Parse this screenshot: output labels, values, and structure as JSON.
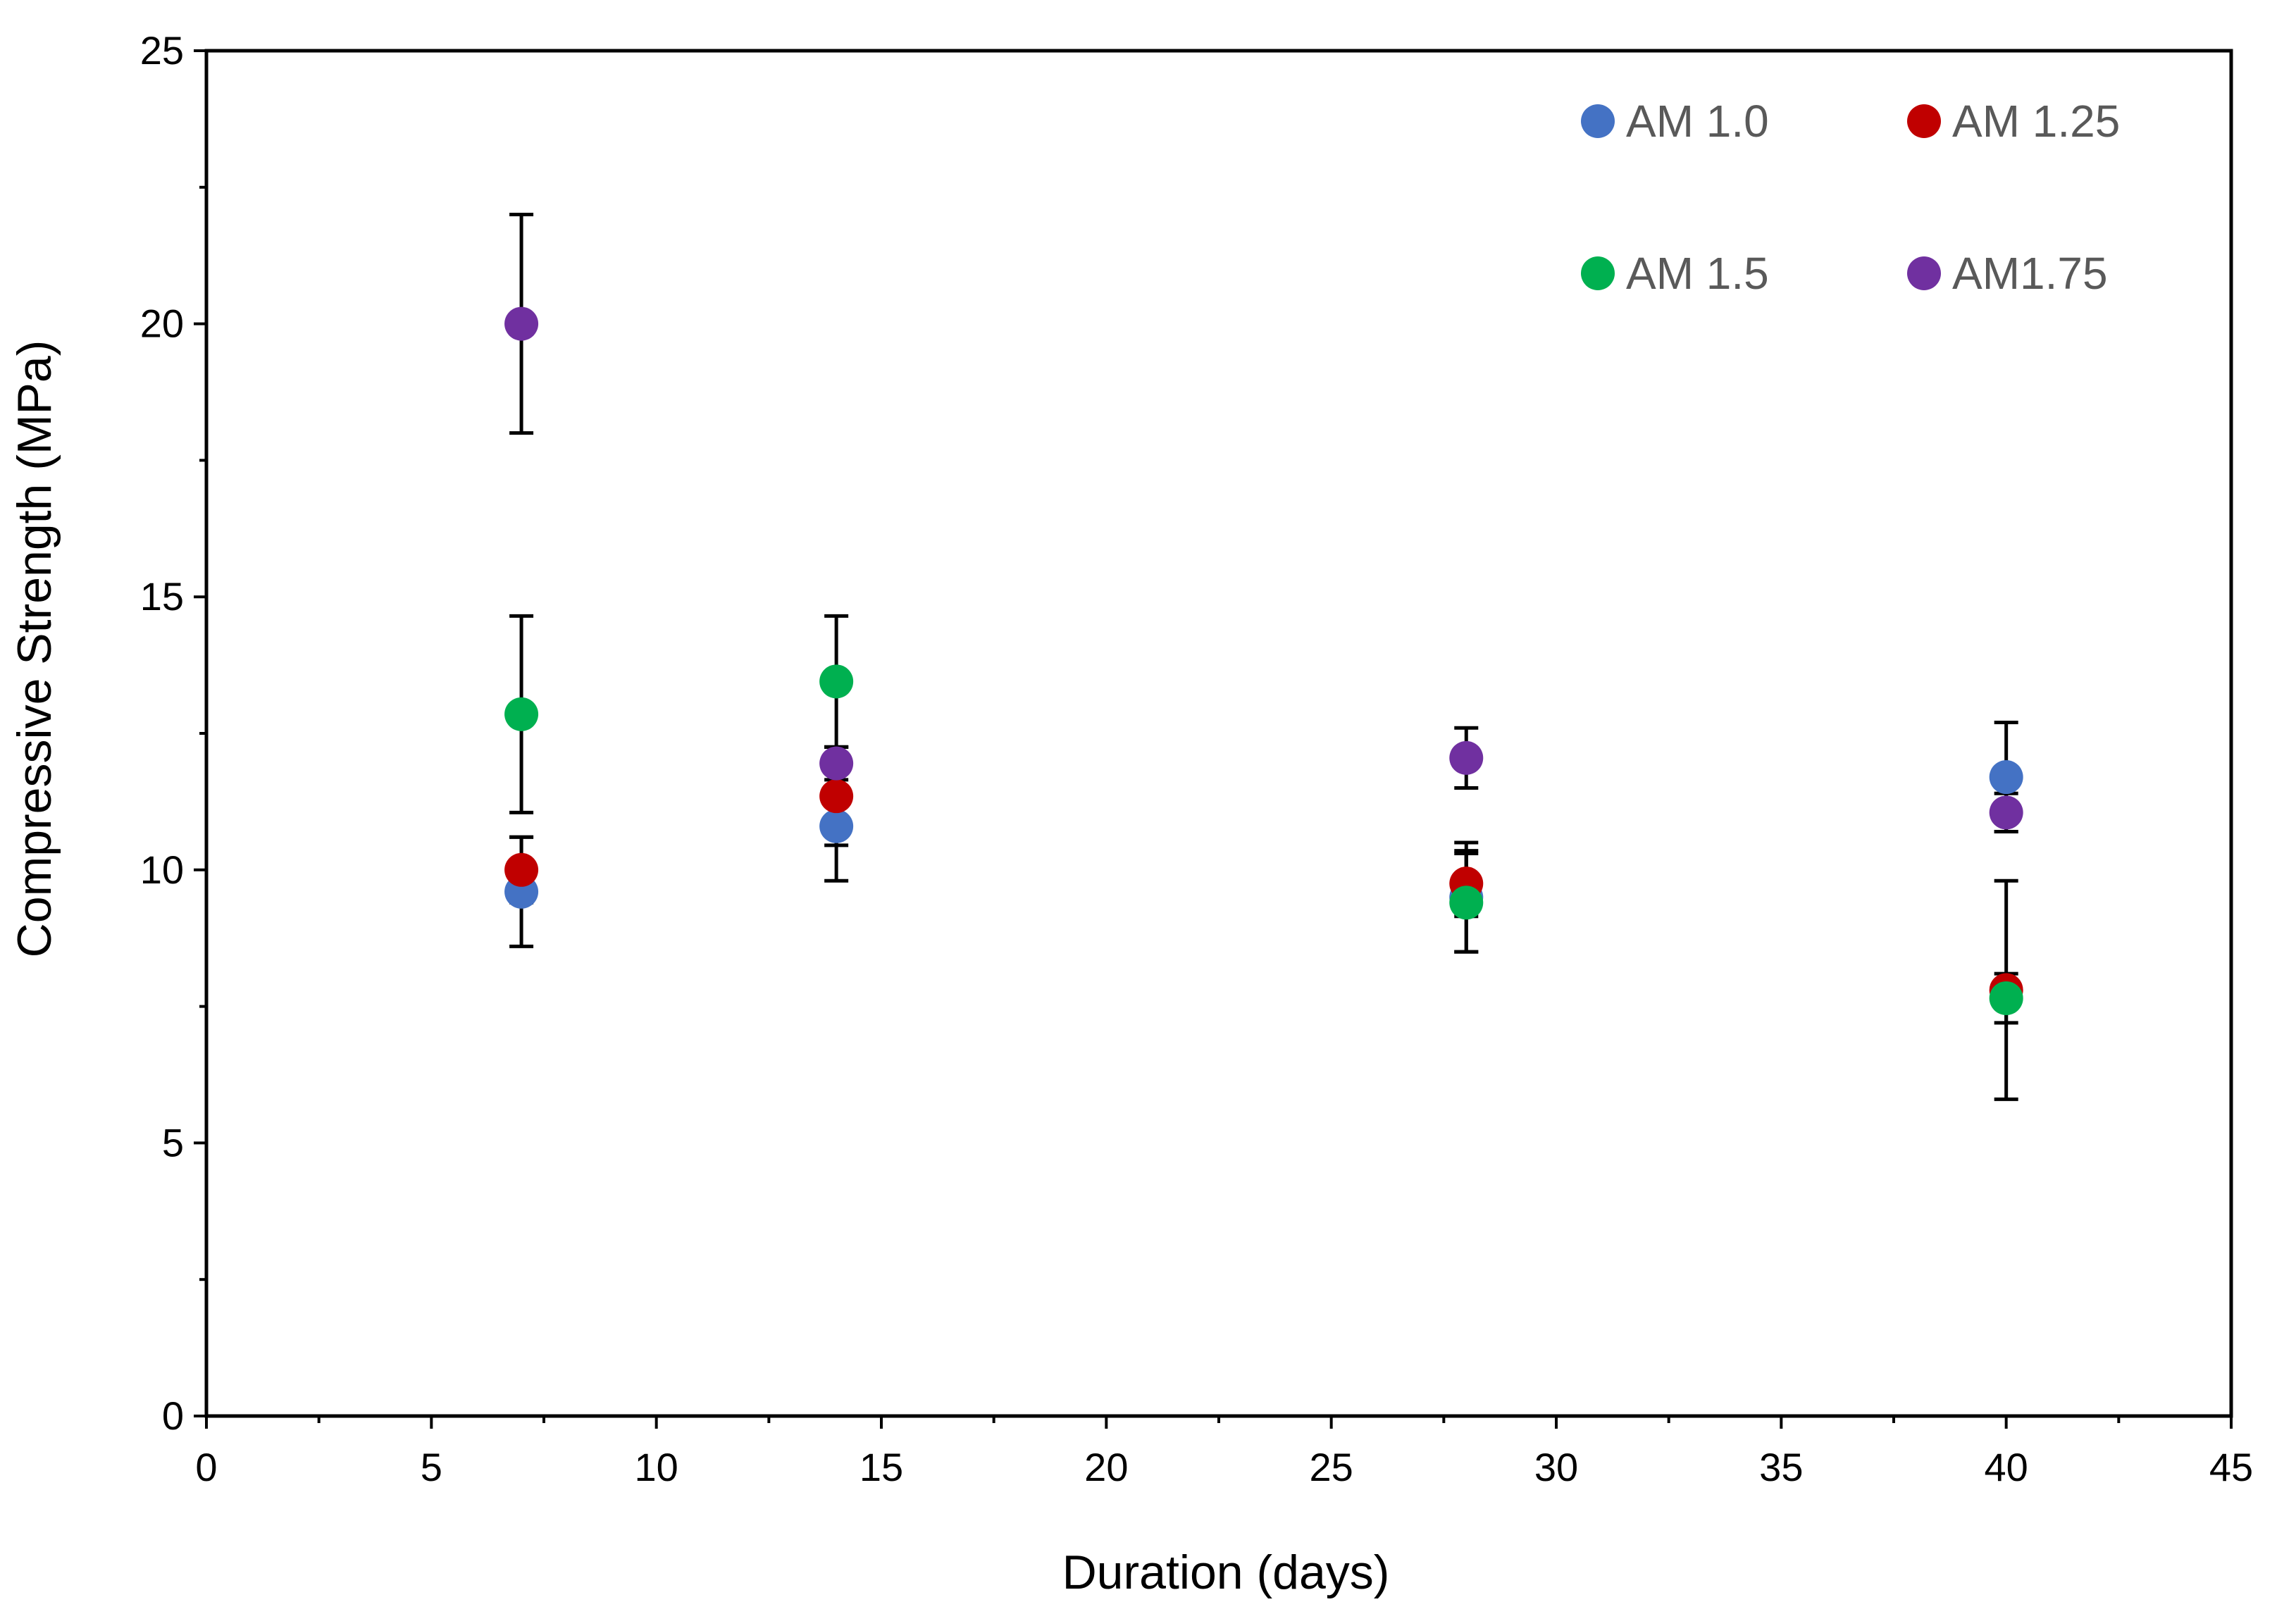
{
  "chart_data": {
    "type": "scatter",
    "title": "",
    "xlabel": "Duration (days)",
    "ylabel": "Compressive Strength (MPa)",
    "xlim": [
      0,
      45
    ],
    "ylim": [
      0,
      25
    ],
    "xticks": [
      0,
      5,
      10,
      15,
      20,
      25,
      30,
      35,
      40,
      45
    ],
    "yticks": [
      0,
      5,
      10,
      15,
      20,
      25
    ],
    "xtick_labels": [
      "0",
      "5",
      "10",
      "15",
      "20",
      "25",
      "30",
      "35",
      "40",
      "45"
    ],
    "ytick_labels": [
      "0",
      "5",
      "10",
      "15",
      "20",
      "25"
    ],
    "grid": false,
    "legend_position": "top-right",
    "series": [
      {
        "name": "AM 1.0",
        "color": "#4472C4",
        "points": [
          {
            "x": 7,
            "y": 9.6,
            "err": 1.0
          },
          {
            "x": 14,
            "y": 10.8,
            "err": 1.0
          },
          {
            "x": 28,
            "y": 9.5,
            "err": 1.0
          },
          {
            "x": 40,
            "y": 11.7,
            "err": 1.0
          }
        ]
      },
      {
        "name": "AM 1.25",
        "color": "#C00000",
        "points": [
          {
            "x": 7,
            "y": 10.0,
            "err": 0.6
          },
          {
            "x": 14,
            "y": 11.35,
            "err": 0.9
          },
          {
            "x": 28,
            "y": 9.75,
            "err": 0.6
          },
          {
            "x": 40,
            "y": 7.8,
            "err": 2.0
          }
        ]
      },
      {
        "name": "AM 1.5",
        "color": "#00B050",
        "points": [
          {
            "x": 7,
            "y": 12.85,
            "err": 1.8
          },
          {
            "x": 14,
            "y": 13.45,
            "err": 1.2
          },
          {
            "x": 28,
            "y": 9.4,
            "err": 0.9
          },
          {
            "x": 40,
            "y": 7.65,
            "err": 0.45
          }
        ]
      },
      {
        "name": "AM1.75",
        "color": "#7030A0",
        "points": [
          {
            "x": 7,
            "y": 20.0,
            "err": 2.0
          },
          {
            "x": 14,
            "y": 11.95,
            "err": 0.3
          },
          {
            "x": 28,
            "y": 12.05,
            "err": 0.55
          },
          {
            "x": 40,
            "y": 11.05,
            "err": 0.35
          }
        ]
      }
    ]
  }
}
